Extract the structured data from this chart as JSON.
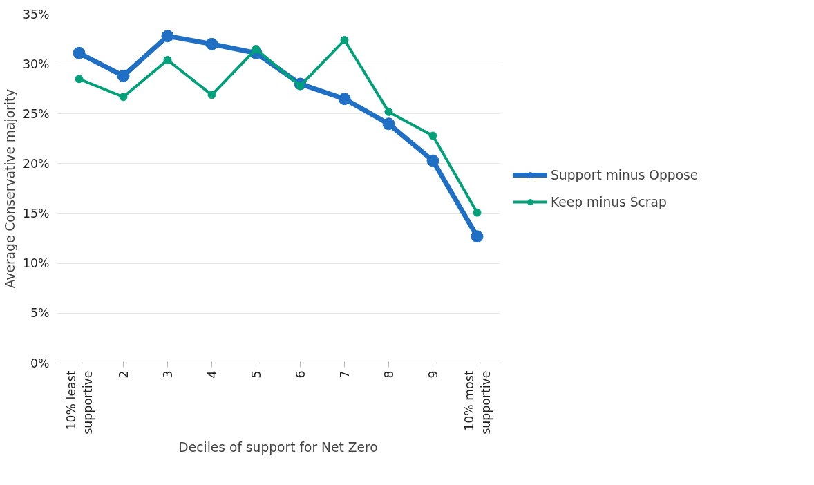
{
  "chart_data": {
    "type": "line",
    "xlabel": "Deciles of support for Net Zero",
    "ylabel": "Average Conservative majority",
    "categories": [
      "10% least supportive",
      "2",
      "3",
      "4",
      "5",
      "6",
      "7",
      "8",
      "9",
      "10% most supportive"
    ],
    "series": [
      {
        "name": "Support minus Oppose",
        "color": "#1f6fc5",
        "values": [
          31.1,
          28.8,
          32.8,
          32.0,
          31.1,
          28.0,
          26.5,
          24.0,
          20.3,
          12.7
        ]
      },
      {
        "name": "Keep minus Scrap",
        "color": "#00a078",
        "values": [
          28.5,
          26.7,
          30.4,
          26.9,
          31.5,
          27.8,
          32.4,
          25.2,
          22.8,
          15.1
        ]
      }
    ],
    "ylim": [
      0,
      35
    ],
    "yticks": [
      {
        "value": 0,
        "label": "0%"
      },
      {
        "value": 5,
        "label": "5%"
      },
      {
        "value": 10,
        "label": "10%"
      },
      {
        "value": 15,
        "label": "15%"
      },
      {
        "value": 20,
        "label": "20%"
      },
      {
        "value": 25,
        "label": "25%"
      },
      {
        "value": 30,
        "label": "30%"
      },
      {
        "value": 35,
        "label": "35%"
      }
    ],
    "grid": "y",
    "legend": "right",
    "marker": "circle",
    "line_style": "solid"
  }
}
